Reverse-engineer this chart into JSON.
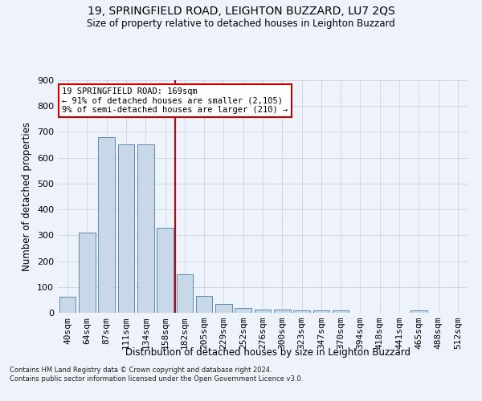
{
  "title": "19, SPRINGFIELD ROAD, LEIGHTON BUZZARD, LU7 2QS",
  "subtitle": "Size of property relative to detached houses in Leighton Buzzard",
  "xlabel": "Distribution of detached houses by size in Leighton Buzzard",
  "ylabel": "Number of detached properties",
  "footnote": "Contains HM Land Registry data © Crown copyright and database right 2024.\nContains public sector information licensed under the Open Government Licence v3.0.",
  "bar_labels": [
    "40sqm",
    "64sqm",
    "87sqm",
    "111sqm",
    "134sqm",
    "158sqm",
    "182sqm",
    "205sqm",
    "229sqm",
    "252sqm",
    "276sqm",
    "300sqm",
    "323sqm",
    "347sqm",
    "370sqm",
    "394sqm",
    "418sqm",
    "441sqm",
    "465sqm",
    "488sqm",
    "512sqm"
  ],
  "bar_values": [
    62,
    310,
    680,
    653,
    653,
    328,
    148,
    65,
    35,
    20,
    12,
    12,
    10,
    10,
    10,
    0,
    0,
    0,
    8,
    0,
    0
  ],
  "bar_color": "#c8d8e8",
  "bar_edge_color": "#5b8db0",
  "grid_color": "#d0d8e8",
  "annotation_line1": "19 SPRINGFIELD ROAD: 169sqm",
  "annotation_line2": "← 91% of detached houses are smaller (2,105)",
  "annotation_line3": "9% of semi-detached houses are larger (210) →",
  "annotation_box_color": "#ffffff",
  "annotation_box_edge": "#cc0000",
  "vline_color": "#cc0000",
  "ylim": [
    0,
    900
  ],
  "yticks": [
    0,
    100,
    200,
    300,
    400,
    500,
    600,
    700,
    800,
    900
  ],
  "background_color": "#eef2fa"
}
